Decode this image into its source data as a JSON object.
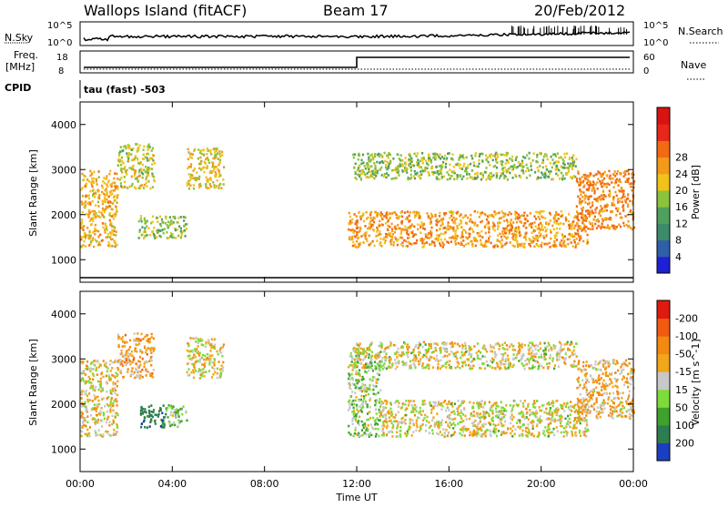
{
  "header": {
    "station": "Wallops Island (fitACF)",
    "beam": "Beam 17",
    "date": "20/Feb/2012"
  },
  "strip": {
    "left_labels": [
      "N.Sky",
      "Freq.",
      "[MHz]",
      "CPID"
    ],
    "right_labels": [
      "N.Search",
      "Nave"
    ],
    "nsky_ticks": [
      "10^5",
      "10^0"
    ],
    "nsearch_ticks": [
      "10^5",
      "10^0"
    ],
    "freq_ticks": [
      "18",
      "8"
    ],
    "nave_ticks": [
      "60",
      "0"
    ],
    "cpid_text": "tau (fast) -503"
  },
  "time_axis": {
    "label": "Time UT",
    "ticks": [
      "00:00",
      "04:00",
      "08:00",
      "12:00",
      "16:00",
      "20:00",
      "00:00"
    ]
  },
  "chart_data": [
    {
      "type": "heatmap",
      "panel": "power",
      "xlabel": "Time UT",
      "ylabel": "Slant Range [km]",
      "yticks": [
        "1000",
        "2000",
        "3000",
        "4000"
      ],
      "ylim": [
        500,
        4500
      ],
      "xlim_hours": [
        0,
        24
      ],
      "colorbar": {
        "label": "Power [dB]",
        "ticks": [
          "4",
          "8",
          "12",
          "16",
          "20",
          "24",
          "28"
        ],
        "colors": [
          "#1f1fd6",
          "#2e5fa8",
          "#3c8a6a",
          "#4fa05c",
          "#8cc23c",
          "#f2c21a",
          "#f39a1a",
          "#f26a14",
          "#e8261a",
          "#d81313"
        ]
      },
      "regions": [
        {
          "t": [
            0.0,
            1.6
          ],
          "r": [
            1300,
            3000
          ],
          "value": 24
        },
        {
          "t": [
            1.6,
            3.2
          ],
          "r": [
            2600,
            3600
          ],
          "value": 20
        },
        {
          "t": [
            2.5,
            4.6
          ],
          "r": [
            1500,
            2000
          ],
          "value": 18
        },
        {
          "t": [
            4.6,
            6.2
          ],
          "r": [
            2600,
            3500
          ],
          "value": 22
        },
        {
          "t": [
            11.6,
            22.0
          ],
          "r": [
            1300,
            2100
          ],
          "value": 26
        },
        {
          "t": [
            11.8,
            21.5
          ],
          "r": [
            2800,
            3400
          ],
          "value": 18
        },
        {
          "t": [
            21.5,
            24.0
          ],
          "r": [
            1700,
            3000
          ],
          "value": 28
        }
      ]
    },
    {
      "type": "heatmap",
      "panel": "velocity",
      "xlabel": "Time UT",
      "ylabel": "Slant Range [km]",
      "yticks": [
        "1000",
        "2000",
        "3000",
        "4000"
      ],
      "ylim": [
        500,
        4500
      ],
      "xlim_hours": [
        0,
        24
      ],
      "colorbar": {
        "label": "Velocity [m s^-1]",
        "ticks": [
          "200",
          "100",
          "50",
          "15",
          "-15",
          "-50",
          "-100",
          "-200"
        ],
        "colors": [
          "#1b3fc2",
          "#2e7d4f",
          "#3fa12e",
          "#7ddc3a",
          "#c8c8c8",
          "#f2a61a",
          "#f28a10",
          "#f25a10",
          "#e01a10"
        ]
      },
      "regions": [
        {
          "t": [
            0.0,
            1.6
          ],
          "r": [
            1300,
            3000
          ],
          "value": -15
        },
        {
          "t": [
            1.6,
            3.2
          ],
          "r": [
            2600,
            3600
          ],
          "value": -50
        },
        {
          "t": [
            2.5,
            3.7
          ],
          "r": [
            1500,
            2000
          ],
          "value": 150
        },
        {
          "t": [
            3.7,
            4.6
          ],
          "r": [
            1500,
            2000
          ],
          "value": 30
        },
        {
          "t": [
            4.6,
            6.2
          ],
          "r": [
            2600,
            3500
          ],
          "value": -10
        },
        {
          "t": [
            11.6,
            13.0
          ],
          "r": [
            1300,
            3200
          ],
          "value": 30
        },
        {
          "t": [
            13.0,
            22.0
          ],
          "r": [
            1300,
            2100
          ],
          "value": -5
        },
        {
          "t": [
            11.8,
            21.5
          ],
          "r": [
            2800,
            3400
          ],
          "value": -5
        },
        {
          "t": [
            21.5,
            24.0
          ],
          "r": [
            1700,
            3000
          ],
          "value": -40
        }
      ]
    }
  ]
}
